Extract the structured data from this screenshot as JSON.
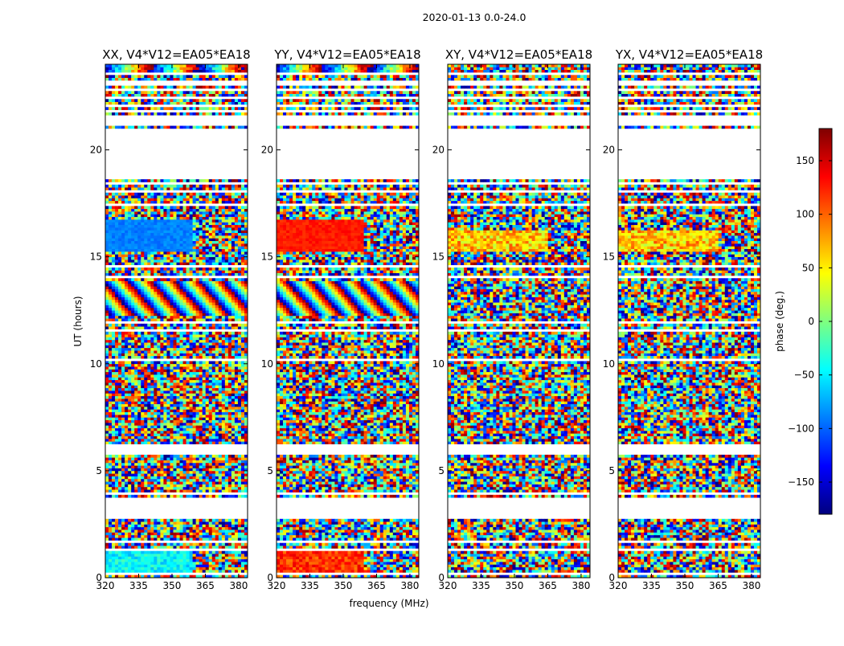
{
  "suptitle": "2020-01-13 0.0-24.0",
  "chart_data": {
    "type": "heatmap",
    "xlabel": "frequency (MHz)",
    "ylabel": "UT (hours)",
    "xlim": [
      320,
      384
    ],
    "ylim": [
      0,
      24
    ],
    "xticks": [
      320,
      335,
      350,
      365,
      380
    ],
    "yticks": [
      0,
      5,
      10,
      15,
      20
    ],
    "colorbar": {
      "label": "phase (deg.)",
      "range": [
        -180,
        180
      ],
      "ticks": [
        -150,
        -100,
        -50,
        0,
        50,
        100,
        150
      ],
      "colormap": "jet"
    },
    "panels": [
      {
        "title": "XX, V4*V12=EA05*EA18"
      },
      {
        "title": "YY, V4*V12=EA05*EA18"
      },
      {
        "title": "XY, V4*V12=EA05*EA18"
      },
      {
        "title": "YX, V4*V12=EA05*EA18"
      }
    ],
    "data_gaps_hours": [
      [
        0.15,
        0.2
      ],
      [
        1.3,
        1.4
      ],
      [
        1.65,
        1.75
      ],
      [
        2.75,
        3.75
      ],
      [
        3.9,
        4.0
      ],
      [
        5.7,
        6.3
      ],
      [
        9.7,
        9.8
      ],
      [
        10.1,
        10.2
      ],
      [
        11.55,
        11.65
      ],
      [
        11.9,
        12.0
      ],
      [
        13.95,
        14.1
      ],
      [
        14.55,
        14.65
      ],
      [
        17.35,
        17.45
      ],
      [
        17.95,
        18.1
      ],
      [
        18.4,
        18.45
      ],
      [
        18.65,
        21.0
      ],
      [
        21.15,
        21.6
      ],
      [
        21.75,
        21.85
      ],
      [
        22.05,
        22.15
      ],
      [
        22.35,
        22.5
      ],
      [
        22.75,
        22.85
      ],
      [
        23.05,
        23.3
      ],
      [
        23.55,
        23.6
      ]
    ]
  },
  "colors": {
    "jet_stops": [
      "#00007f",
      "#0000ff",
      "#007fff",
      "#00ffff",
      "#7fff7f",
      "#ffff00",
      "#ff7f00",
      "#ff0000",
      "#7f0000"
    ]
  }
}
